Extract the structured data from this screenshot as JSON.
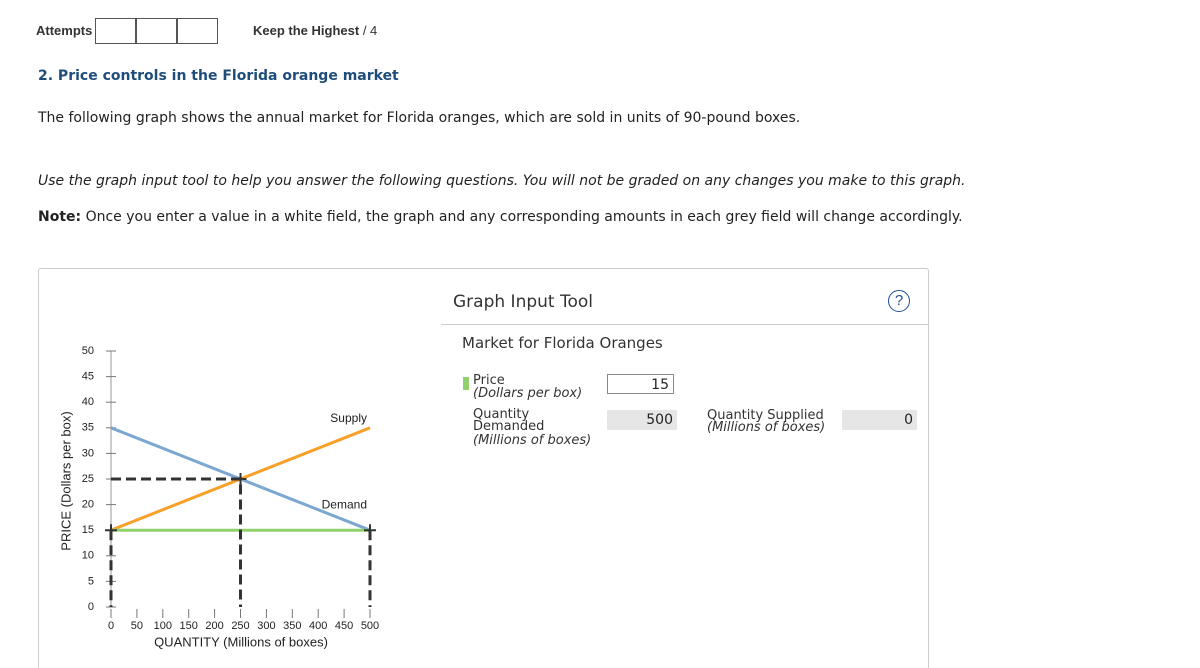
{
  "header": {
    "attempts_label": "Attempts",
    "keep_label": "Keep the Highest",
    "keep_value": "/ 4"
  },
  "question": {
    "title": "2. Price controls in the Florida orange market",
    "intro": "The following graph shows the annual market for Florida oranges, which are sold in units of 90-pound boxes.",
    "instruction": "Use the graph input tool to help you answer the following questions. You will not be graded on any changes you make to this graph.",
    "note_label": "Note:",
    "note_text": "Once you enter a value in a white field, the graph and any corresponding amounts in each grey field will change accordingly."
  },
  "chart_data": {
    "type": "line",
    "x_label": "QUANTITY (Millions of boxes)",
    "y_label": "PRICE (Dollars per box)",
    "xlim": [
      0,
      500
    ],
    "ylim": [
      0,
      50
    ],
    "xticks": [
      0,
      50,
      100,
      150,
      200,
      250,
      300,
      350,
      400,
      450,
      500
    ],
    "yticks": [
      0,
      5,
      10,
      15,
      20,
      25,
      30,
      35,
      40,
      45,
      50
    ],
    "grid": false,
    "series": [
      {
        "name": "Supply",
        "color": "#f7a12a",
        "x": [
          0,
          500
        ],
        "values": [
          15,
          35
        ]
      },
      {
        "name": "Demand",
        "color": "#7ba7d1",
        "x": [
          0,
          500
        ],
        "values": [
          35,
          15
        ]
      },
      {
        "color": "#8fd16f",
        "x": [
          0,
          500
        ],
        "values": [
          15,
          15
        ]
      },
      {
        "color": "#333333",
        "style": "dashed",
        "x": [
          0,
          250,
          250
        ],
        "values": [
          25,
          25,
          0
        ]
      },
      {
        "color": "#333333",
        "style": "dashed",
        "x": [
          0,
          0
        ],
        "values": [
          15,
          0
        ]
      },
      {
        "color": "#333333",
        "style": "dashed",
        "x": [
          500,
          500
        ],
        "values": [
          15,
          0
        ]
      }
    ],
    "markers": [
      {
        "x": 250,
        "y": 25
      },
      {
        "x": 0,
        "y": 15
      },
      {
        "x": 500,
        "y": 15
      }
    ]
  },
  "tool": {
    "title": "Graph Input Tool",
    "help": "?",
    "subtitle": "Market for Florida Oranges",
    "fields": [
      {
        "label": "Price",
        "unit": "(Dollars per box)",
        "value": 15
      },
      {
        "label": "Quantity Demanded",
        "unit": "(Millions of boxes)",
        "value": 500
      },
      {
        "label": "Quantity Supplied",
        "unit": "(Millions of boxes)",
        "value": 0
      }
    ]
  }
}
